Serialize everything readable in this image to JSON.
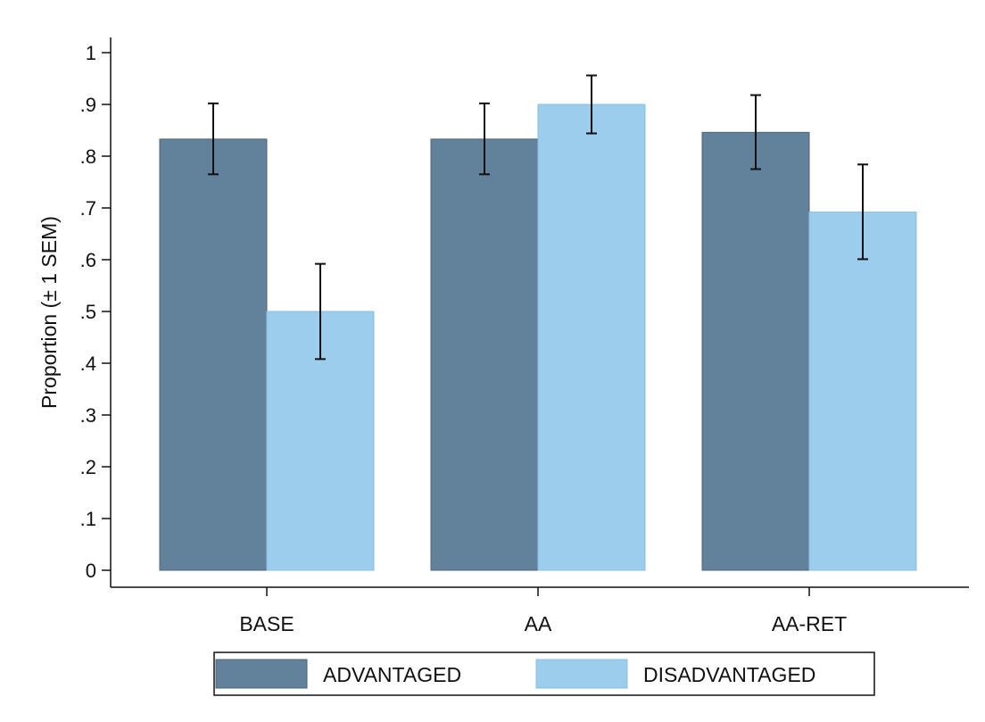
{
  "chart_data": {
    "type": "bar",
    "title": "",
    "xlabel": "",
    "ylabel": "Proportion (± 1 SEM)",
    "ylim": [
      0,
      1
    ],
    "yticks": [
      0,
      0.1,
      0.2,
      0.3,
      0.4,
      0.5,
      0.6,
      0.7,
      0.8,
      0.9,
      1
    ],
    "ytick_labels": [
      "0",
      ".1",
      ".2",
      ".3",
      ".4",
      ".5",
      ".6",
      ".7",
      ".8",
      ".9",
      "1"
    ],
    "categories": [
      "BASE",
      "AA",
      "AA-RET"
    ],
    "series": [
      {
        "name": "ADVANTAGED",
        "color": "#62819a",
        "values": [
          0.833,
          0.833,
          0.846
        ],
        "err_low": [
          0.765,
          0.765,
          0.775
        ],
        "err_high": [
          0.902,
          0.902,
          0.918
        ]
      },
      {
        "name": "DISADVANTAGED",
        "color": "#9ccdec",
        "values": [
          0.5,
          0.9,
          0.692
        ],
        "err_low": [
          0.408,
          0.844,
          0.601
        ],
        "err_high": [
          0.592,
          0.956,
          0.784
        ]
      }
    ],
    "grid": false,
    "legend_position": "bottom",
    "error_bars": "± 1 SEM"
  }
}
